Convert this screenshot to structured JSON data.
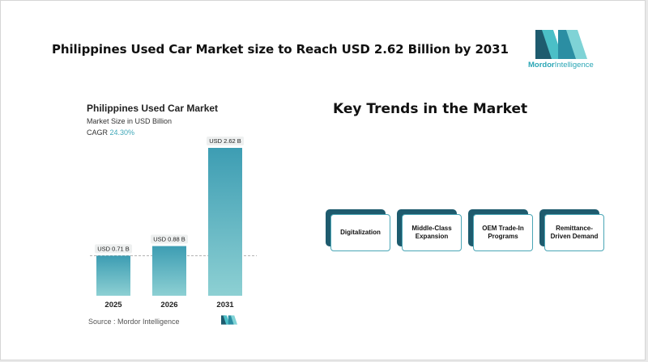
{
  "header": {
    "title": "Philippines Used Car Market size to Reach USD 2.62 Billion by 2031",
    "logo_word1": "Mordor",
    "logo_word2": "Intelligence"
  },
  "chart_data": {
    "type": "bar",
    "title": "Philippines Used Car Market",
    "subtitle": "Market Size in USD Billion",
    "cagr_label": "CAGR",
    "cagr_value": "24.30%",
    "categories": [
      "2025",
      "2026",
      "2031"
    ],
    "values": [
      0.71,
      0.88,
      2.62
    ],
    "data_labels": [
      "USD 0.71 B",
      "USD 0.88 B",
      "USD 2.62 B"
    ],
    "ylim": [
      0,
      2.62
    ],
    "reference_line_value": 0.71,
    "bar_color_top": "#3d9db3",
    "bar_color_bottom": "#8dd0d3",
    "grid": false
  },
  "source": "Source :  Mordor Intelligence",
  "trends": {
    "title": "Key Trends in the Market",
    "items": [
      "Digitalization",
      "Middle-Class Expansion",
      "OEM Trade-In Programs",
      "Remittance-Driven Demand"
    ]
  },
  "colors": {
    "accent": "#3fa7b8",
    "dark_teal": "#1e5b6e"
  }
}
